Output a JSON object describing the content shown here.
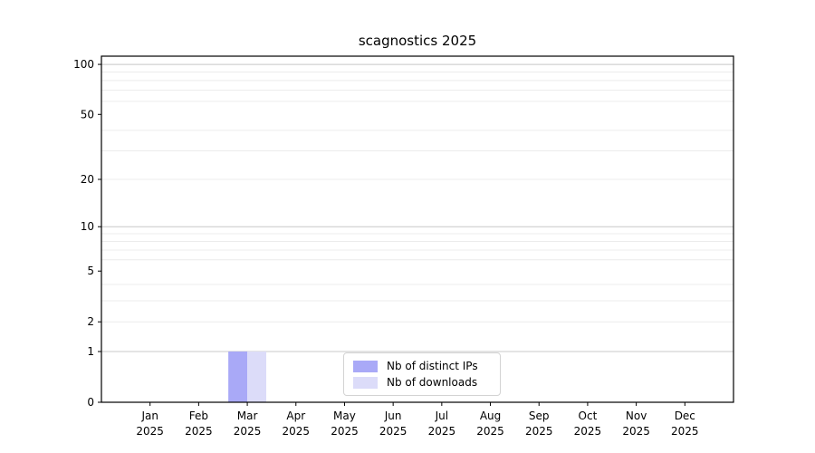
{
  "chart_data": {
    "type": "bar",
    "title": "scagnostics 2025",
    "xlabel": "",
    "ylabel": "",
    "categories": [
      "Jan 2025",
      "Feb 2025",
      "Mar 2025",
      "Apr 2025",
      "May 2025",
      "Jun 2025",
      "Jul 2025",
      "Aug 2025",
      "Sep 2025",
      "Oct 2025",
      "Nov 2025",
      "Dec 2025"
    ],
    "series": [
      {
        "name": "Nb of distinct IPs",
        "color": "#a9a9f7",
        "values": [
          0,
          0,
          1,
          0,
          0,
          0,
          0,
          0,
          0,
          0,
          0,
          0
        ]
      },
      {
        "name": "Nb of downloads",
        "color": "#dcdcf9",
        "values": [
          0,
          0,
          1,
          0,
          0,
          0,
          0,
          0,
          0,
          0,
          0,
          0
        ]
      }
    ],
    "yscale": "log1p",
    "ylim": [
      0,
      112
    ],
    "y_ticks": [
      0,
      1,
      2,
      5,
      10,
      20,
      50,
      100
    ],
    "grid_major": [
      1,
      10,
      100
    ],
    "grid_minor": [
      2,
      3,
      4,
      6,
      7,
      8,
      9,
      20,
      30,
      40,
      60,
      70,
      80,
      90
    ],
    "grid": "on",
    "legend_position": "lower center",
    "colors": {
      "axis": "#000000",
      "grid_major": "#c8c8c8",
      "grid_minor": "#ececec",
      "text": "#000000",
      "legend_border": "#d3d3d3"
    }
  }
}
